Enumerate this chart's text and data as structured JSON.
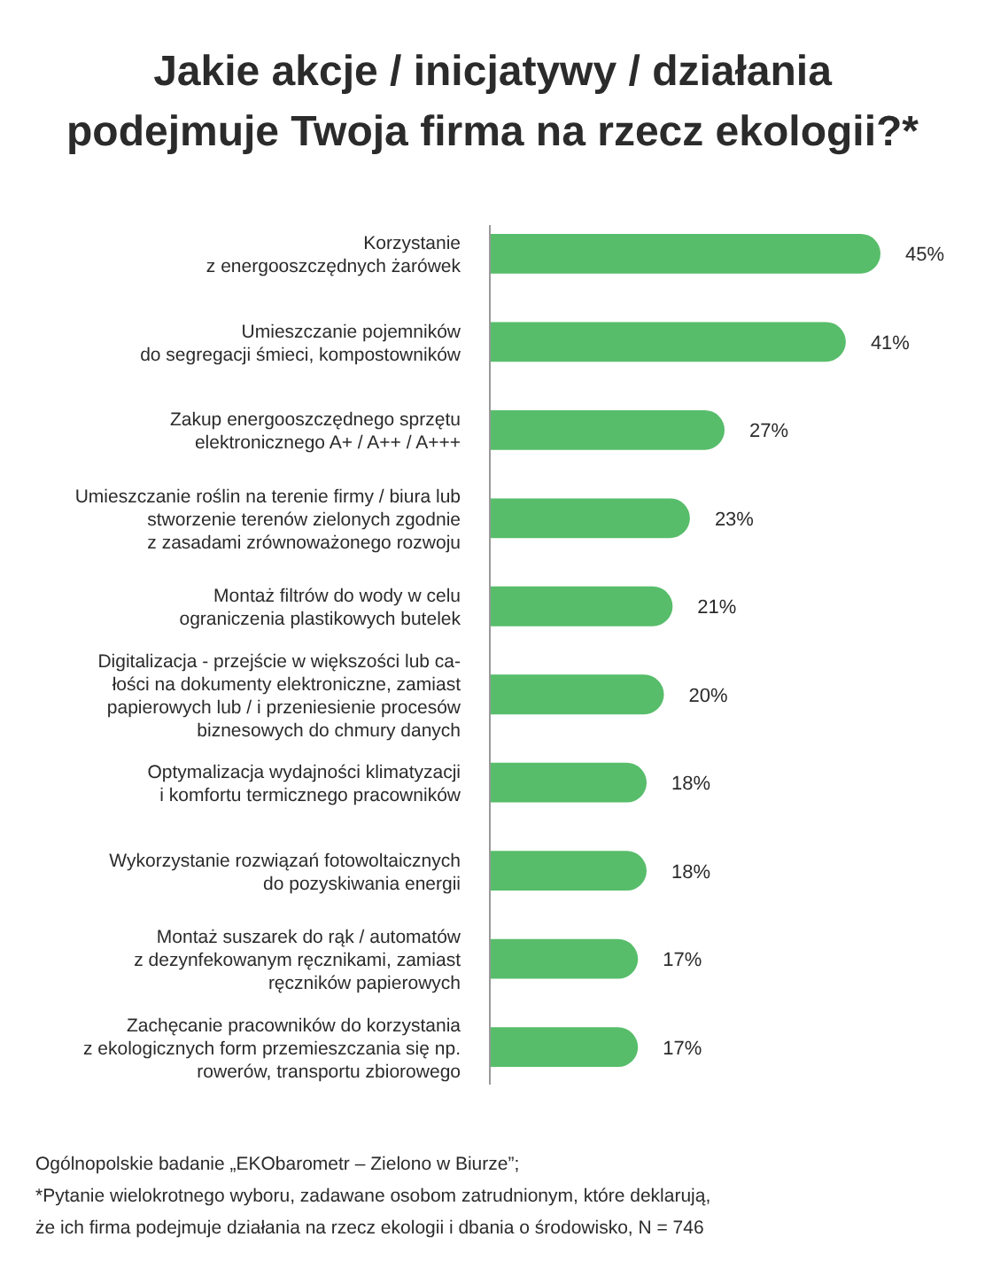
{
  "chart_data": {
    "type": "bar",
    "orientation": "horizontal",
    "title": "Jakie akcje / inicjatywy / działania\npodejmuje Twoja firma na rzecz ekologii?*",
    "categories": [
      "Korzystanie\nz energooszczędnych żarówek",
      "Umieszczanie pojemników\ndo segregacji śmieci, kompostowników",
      "Zakup energooszczędnego sprzętu\nelektronicznego A+ / A++ / A+++",
      "Umieszczanie roślin na terenie firmy  / biura lub\nstworzenie terenów zielonych zgodnie\nz zasadami zrównoważonego rozwoju",
      "Montaż filtrów do wody w celu\nograniczenia plastikowych butelek",
      "Digitalizacja - przejście w większości lub ca-\nłości na dokumenty elektroniczne, zamiast\npapierowych lub / i przeniesienie procesów\nbiznesowych do chmury danych",
      "Optymalizacja wydajności klimatyzacji\ni komfortu termicznego pracowników",
      "Wykorzystanie rozwiązań fotowoltaicznych\ndo pozyskiwania energii",
      "Montaż suszarek do rąk / automatów\nz dezynfekowanym ręcznikami, zamiast\nręczników papierowych",
      "Zachęcanie pracowników do korzystania\nz ekologicznych form przemieszczania się np.\nrowerów, transportu zbiorowego"
    ],
    "values": [
      45,
      41,
      27,
      23,
      21,
      20,
      18,
      18,
      17,
      17
    ],
    "value_labels": [
      "45%",
      "41%",
      "27%",
      "23%",
      "21%",
      "20%",
      "18%",
      "18%",
      "17%",
      "17%"
    ],
    "color": "#57bd6a",
    "annotations": [
      "Ogólnopolskie badanie „EKObarometr – Zielono w Biurze”;",
      "*Pytanie wielokrotnego wyboru, zadawane osobom zatrudnionym, które deklarują,\nże ich firma podejmuje działania na rzecz ekologii i dbania o środowisko, N = 746"
    ]
  }
}
